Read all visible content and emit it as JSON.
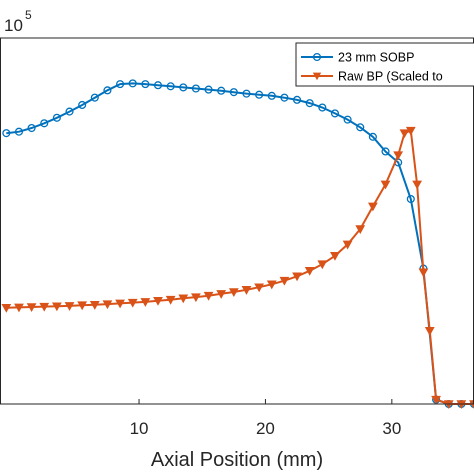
{
  "chart_data": {
    "type": "line",
    "title": "",
    "xlabel": "Axial Position (mm)",
    "ylabel": "",
    "y_exponent_label": "10",
    "y_exponent_power": "5",
    "xlim": [
      -1,
      36.5
    ],
    "ylim": [
      0,
      1
    ],
    "x_ticks": [
      10,
      20,
      30
    ],
    "grid": false,
    "legend_position": "top-right",
    "series": [
      {
        "name": "23 mm SOBP",
        "color": "#0072BD",
        "marker": "circle",
        "x": [
          -0.5,
          0.5,
          1.5,
          2.5,
          3.5,
          4.5,
          5.5,
          6.5,
          7.5,
          8.5,
          9.5,
          10.5,
          11.5,
          12.5,
          13.5,
          14.5,
          15.5,
          16.5,
          17.5,
          18.5,
          19.5,
          20.5,
          21.5,
          22.5,
          23.5,
          24.5,
          25.5,
          26.5,
          27.5,
          28.5,
          29.5,
          30.5,
          31.5,
          32.5,
          33.5,
          34.5,
          35.5,
          36.5
        ],
        "y": [
          0.74,
          0.744,
          0.754,
          0.767,
          0.782,
          0.799,
          0.817,
          0.837,
          0.857,
          0.874,
          0.876,
          0.874,
          0.871,
          0.868,
          0.865,
          0.862,
          0.859,
          0.856,
          0.852,
          0.848,
          0.845,
          0.842,
          0.837,
          0.831,
          0.822,
          0.81,
          0.794,
          0.777,
          0.756,
          0.73,
          0.69,
          0.66,
          0.56,
          0.37,
          0.012,
          0.0,
          0.0,
          0.0
        ]
      },
      {
        "name": "Raw BP (Scaled to",
        "color": "#D95319",
        "marker": "triangle-down",
        "x": [
          -0.5,
          0.5,
          1.5,
          2.5,
          3.5,
          4.5,
          5.5,
          6.5,
          7.5,
          8.5,
          9.5,
          10.5,
          11.5,
          12.5,
          13.5,
          14.5,
          15.5,
          16.5,
          17.5,
          18.5,
          19.5,
          20.5,
          21.5,
          22.5,
          23.5,
          24.5,
          25.5,
          26.5,
          27.5,
          28.5,
          29.5,
          30.5,
          31.0,
          31.5,
          32.0,
          32.5,
          33.0,
          33.5,
          34.5,
          35.5,
          36.5
        ],
        "y": [
          0.263,
          0.264,
          0.265,
          0.266,
          0.267,
          0.268,
          0.27,
          0.271,
          0.273,
          0.275,
          0.277,
          0.279,
          0.282,
          0.285,
          0.289,
          0.292,
          0.296,
          0.301,
          0.306,
          0.312,
          0.319,
          0.327,
          0.337,
          0.349,
          0.364,
          0.382,
          0.405,
          0.436,
          0.478,
          0.54,
          0.6,
          0.68,
          0.74,
          0.747,
          0.6,
          0.36,
          0.2,
          0.012,
          0.0,
          0.0,
          0.0
        ]
      }
    ]
  }
}
